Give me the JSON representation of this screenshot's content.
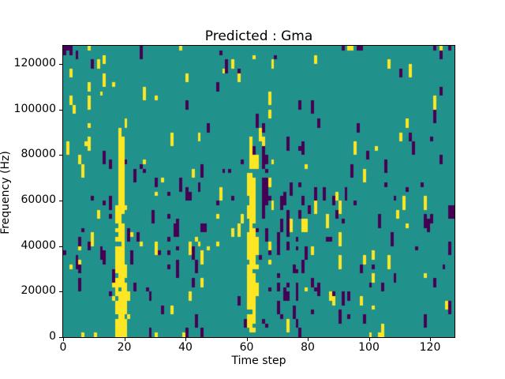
{
  "figure": {
    "title": "Predicted : Gma",
    "xlabel": "Time step",
    "ylabel": "Frequency (Hz)"
  },
  "chart_data": {
    "type": "heatmap",
    "title": "Predicted : Gma",
    "xlabel": "Time step",
    "ylabel": "Frequency (Hz)",
    "x_range": [
      0,
      128
    ],
    "y_range": [
      0,
      128000
    ],
    "x_ticks": [
      0,
      20,
      40,
      60,
      80,
      100,
      120
    ],
    "y_ticks": [
      0,
      20000,
      40000,
      60000,
      80000,
      100000,
      120000
    ],
    "grid": {
      "cols": 128,
      "rows": 64,
      "hz_per_row": 2000
    },
    "legend": "none",
    "grid_lines": "off",
    "palette": {
      "background": "#21918c",
      "low": "#440154",
      "high": "#fde725"
    },
    "value_meaning": {
      "background": "neutral",
      "low": "purple cell",
      "high": "yellow cell"
    },
    "pattern": {
      "seed": 11,
      "scatter": {
        "yellow_start_prob": 0.013,
        "purple_start_prob": 0.018,
        "run_min": 1,
        "run_max": 3
      },
      "regions": [
        {
          "t": [
            25,
            46
          ],
          "f": [
            0,
            78000
          ],
          "purple_mult": 1.9,
          "yellow_mult": 1.4
        },
        {
          "t": [
            64,
            94
          ],
          "f": [
            0,
            66000
          ],
          "purple_mult": 2.4,
          "yellow_mult": 1.7
        },
        {
          "t": [
            66,
            104
          ],
          "f": [
            86000,
            126000
          ],
          "purple_mult": 0.45,
          "yellow_mult": 0.45
        }
      ],
      "bands": [
        {
          "col": 17,
          "f": [
            0,
            58000
          ],
          "fill": 0.82,
          "color": "high"
        },
        {
          "col": 18,
          "f": [
            0,
            92000
          ],
          "fill": 0.93,
          "color": "high"
        },
        {
          "col": 19,
          "f": [
            0,
            88000
          ],
          "fill": 0.9,
          "color": "high"
        },
        {
          "col": 20,
          "f": [
            0,
            32000
          ],
          "fill": 0.75,
          "color": "high"
        },
        {
          "col": 21,
          "f": [
            8000,
            28000
          ],
          "fill": 0.5,
          "color": "high"
        },
        {
          "col": 22,
          "f": [
            38000,
            48000
          ],
          "fill": 0.5,
          "color": "high"
        },
        {
          "col": 60,
          "f": [
            4000,
            72000
          ],
          "fill": 0.8,
          "color": "high"
        },
        {
          "col": 61,
          "f": [
            2000,
            88000
          ],
          "fill": 0.93,
          "color": "high"
        },
        {
          "col": 62,
          "f": [
            2000,
            80000
          ],
          "fill": 0.88,
          "color": "high"
        },
        {
          "col": 63,
          "f": [
            18000,
            46000
          ],
          "fill": 0.6,
          "color": "high"
        },
        {
          "col": 65,
          "f": [
            52000,
            84000
          ],
          "fill": 0.8,
          "color": "low"
        },
        {
          "col": 66,
          "f": [
            54000,
            80000
          ],
          "fill": 0.6,
          "color": "low"
        },
        {
          "col": 70,
          "f": [
            8000,
            46000
          ],
          "fill": 0.5,
          "color": "low"
        },
        {
          "col": 73,
          "f": [
            12000,
            56000
          ],
          "fill": 0.45,
          "color": "low"
        },
        {
          "col": 76,
          "f": [
            16000,
            44000
          ],
          "fill": 0.45,
          "color": "low"
        },
        {
          "col": 34,
          "f": [
            30000,
            64000
          ],
          "fill": 0.4,
          "color": "low"
        },
        {
          "col": 37,
          "f": [
            20000,
            52000
          ],
          "fill": 0.35,
          "color": "low"
        }
      ],
      "explicit_cells": [
        {
          "t": 0,
          "r": 63,
          "c": "low"
        },
        {
          "t": 1,
          "r": 63,
          "c": "low"
        },
        {
          "t": 2,
          "r": 63,
          "c": "low"
        },
        {
          "t": 0,
          "r": 62,
          "c": "low"
        },
        {
          "t": 2,
          "r": 62,
          "c": "low"
        },
        {
          "t": 4,
          "r": 62,
          "c": "low"
        },
        {
          "t": 8,
          "r": 63,
          "c": "high"
        },
        {
          "t": 38,
          "r": 63,
          "c": "high"
        },
        {
          "t": 91,
          "r": 63,
          "c": "low"
        },
        {
          "t": 93,
          "r": 63,
          "c": "high"
        },
        {
          "t": 94,
          "r": 63,
          "c": "high"
        },
        {
          "t": 96,
          "r": 63,
          "c": "low"
        },
        {
          "t": 97,
          "r": 63,
          "c": "low"
        },
        {
          "t": 121,
          "r": 63,
          "c": "low"
        },
        {
          "t": 123,
          "r": 63,
          "c": "high"
        },
        {
          "t": 126,
          "r": 63,
          "c": "low"
        },
        {
          "t": 100,
          "r": 0,
          "c": "high"
        },
        {
          "t": 10,
          "r": 0,
          "c": "high"
        },
        {
          "t": 39,
          "r": 0,
          "c": "high"
        }
      ]
    }
  }
}
